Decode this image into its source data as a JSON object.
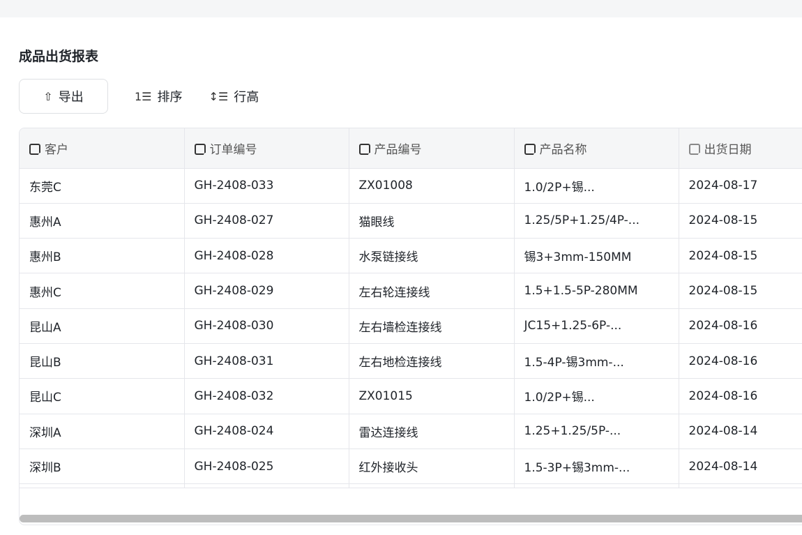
{
  "page": {
    "title": "成品出货报表"
  },
  "toolbar": {
    "export_label": "导出",
    "sort_label": "排序",
    "row_height_label": "行高"
  },
  "icons": {
    "export": "upload-icon",
    "sort": "sort-icon",
    "row_height": "row-height-icon",
    "column": "text-field-icon",
    "date_column": "date-field-icon"
  },
  "table": {
    "columns": [
      "客户",
      "订单编号",
      "产品编号",
      "产品名称",
      "出货日期"
    ],
    "rows": [
      [
        "东莞C",
        "GH-2408-033",
        "ZX01008",
        "1.0/2P+锡...",
        "2024-08-17"
      ],
      [
        "惠州A",
        "GH-2408-027",
        "猫眼线",
        "1.25/5P+1.25/4P-...",
        "2024-08-15"
      ],
      [
        "惠州B",
        "GH-2408-028",
        "水泵链接线",
        "锡3+3mm-150MM",
        "2024-08-15"
      ],
      [
        "惠州C",
        "GH-2408-029",
        "左右轮连接线",
        "1.5+1.5-5P-280MM",
        "2024-08-15"
      ],
      [
        "昆山A",
        "GH-2408-030",
        "左右墙检连接线",
        "JC15+1.25-6P-...",
        "2024-08-16"
      ],
      [
        "昆山B",
        "GH-2408-031",
        "左右地检连接线",
        "1.5-4P-锡3mm-...",
        "2024-08-16"
      ],
      [
        "昆山C",
        "GH-2408-032",
        "ZX01015",
        "1.0/2P+锡...",
        "2024-08-16"
      ],
      [
        "深圳A",
        "GH-2408-024",
        "雷达连接线",
        "1.25+1.25/5P-...",
        "2024-08-14"
      ],
      [
        "深圳B",
        "GH-2408-025",
        "红外接收头",
        "1.5-3P+锡3mm-...",
        "2024-08-14"
      ]
    ]
  }
}
